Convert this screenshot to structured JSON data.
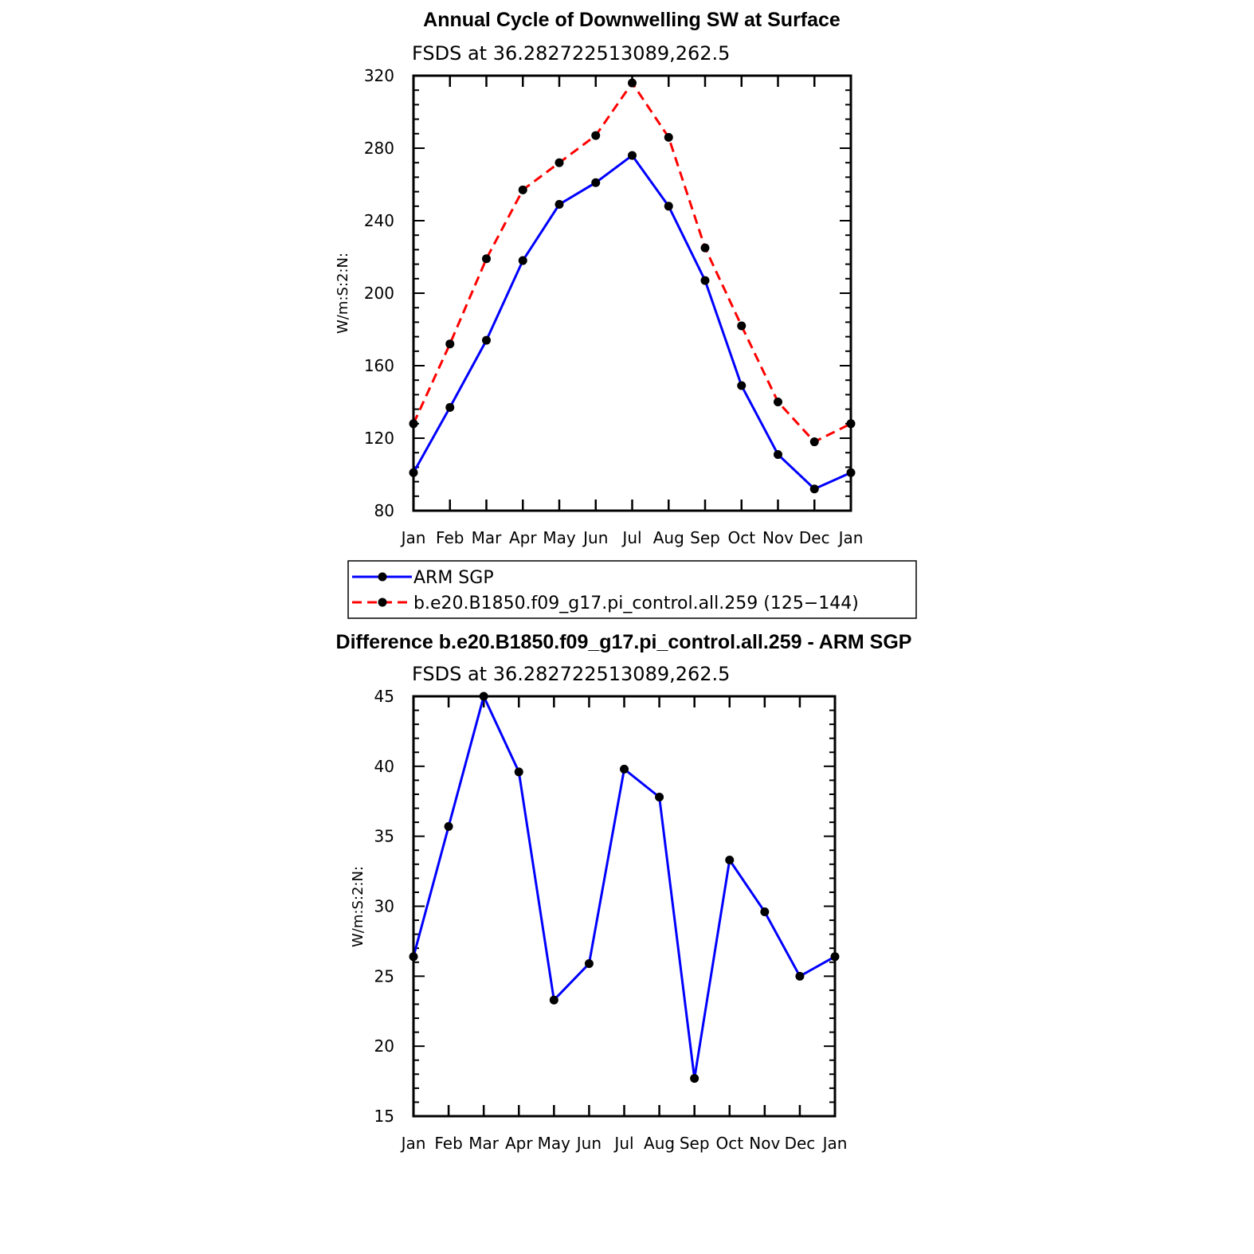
{
  "chart_data": [
    {
      "type": "line",
      "title": "Annual Cycle of Downwelling SW at Surface",
      "subtitle": "FSDS at 36.282722513089,262.5",
      "ylabel": "W/m:S:2:N:",
      "xlabel": "",
      "categories": [
        "Jan",
        "Feb",
        "Mar",
        "Apr",
        "May",
        "Jun",
        "Jul",
        "Aug",
        "Sep",
        "Oct",
        "Nov",
        "Dec",
        "Jan"
      ],
      "ylim": [
        80,
        320
      ],
      "yticks": [
        "80",
        "120",
        "160",
        "200",
        "240",
        "280",
        "320"
      ],
      "series": [
        {
          "name": "ARM SGP",
          "color": "#0000ff",
          "dashed": false,
          "values": [
            101,
            137,
            174,
            218,
            249,
            261,
            276,
            248,
            207,
            149,
            111,
            92,
            101
          ]
        },
        {
          "name": "b.e20.B1850.f09_g17.pi_control.all.259 (125−144)",
          "color": "#ff0000",
          "dashed": true,
          "values": [
            128,
            172,
            219,
            257,
            272,
            287,
            316,
            286,
            225,
            182,
            140,
            118,
            128
          ]
        }
      ]
    },
    {
      "type": "line",
      "title": "Difference b.e20.B1850.f09_g17.pi_control.all.259 - ARM SGP",
      "subtitle": "FSDS at 36.282722513089,262.5",
      "ylabel": "W/m:S:2:N:",
      "xlabel": "",
      "categories": [
        "Jan",
        "Feb",
        "Mar",
        "Apr",
        "May",
        "Jun",
        "Jul",
        "Aug",
        "Sep",
        "Oct",
        "Nov",
        "Dec",
        "Jan"
      ],
      "ylim": [
        15,
        45
      ],
      "yticks": [
        "15",
        "20",
        "25",
        "30",
        "35",
        "40",
        "45"
      ],
      "series": [
        {
          "color": "#0000ff",
          "dashed": false,
          "values": [
            26.4,
            35.7,
            45.0,
            39.6,
            23.3,
            25.9,
            39.8,
            37.8,
            17.7,
            33.3,
            29.6,
            25.0,
            26.4
          ]
        }
      ]
    }
  ]
}
